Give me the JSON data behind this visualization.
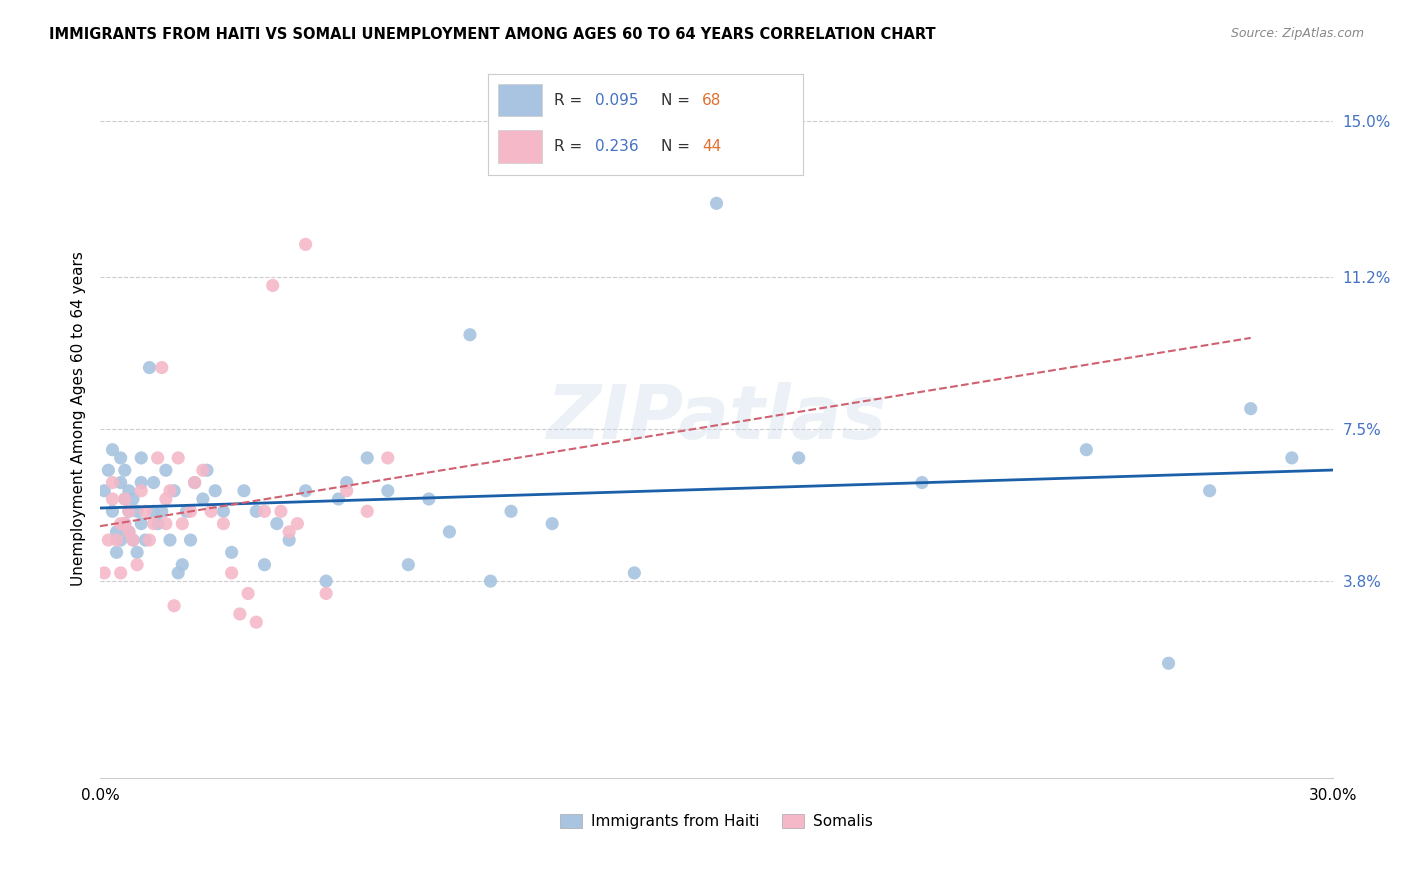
{
  "title": "IMMIGRANTS FROM HAITI VS SOMALI UNEMPLOYMENT AMONG AGES 60 TO 64 YEARS CORRELATION CHART",
  "source": "Source: ZipAtlas.com",
  "ylabel": "Unemployment Among Ages 60 to 64 years",
  "xlim": [
    0.0,
    0.3
  ],
  "ylim": [
    -0.01,
    0.165
  ],
  "haiti_R": 0.095,
  "haiti_N": 68,
  "somali_R": 0.236,
  "somali_N": 44,
  "haiti_color": "#a8c4e0",
  "somali_color": "#f4b8c8",
  "haiti_line_color": "#1a5fa8",
  "somali_line_color": "#d06070",
  "watermark": "ZIPatlas",
  "legend_label_haiti": "Immigrants from Haiti",
  "legend_label_somali": "Somalis",
  "haiti_x": [
    0.001,
    0.002,
    0.003,
    0.003,
    0.004,
    0.004,
    0.005,
    0.005,
    0.005,
    0.006,
    0.006,
    0.006,
    0.007,
    0.007,
    0.007,
    0.008,
    0.008,
    0.009,
    0.009,
    0.01,
    0.01,
    0.01,
    0.011,
    0.012,
    0.013,
    0.013,
    0.014,
    0.015,
    0.016,
    0.017,
    0.018,
    0.019,
    0.02,
    0.021,
    0.022,
    0.023,
    0.025,
    0.026,
    0.028,
    0.03,
    0.032,
    0.035,
    0.038,
    0.04,
    0.043,
    0.046,
    0.05,
    0.055,
    0.058,
    0.06,
    0.065,
    0.07,
    0.075,
    0.08,
    0.085,
    0.09,
    0.095,
    0.1,
    0.11,
    0.13,
    0.15,
    0.17,
    0.2,
    0.24,
    0.26,
    0.27,
    0.28,
    0.29
  ],
  "haiti_y": [
    0.06,
    0.065,
    0.055,
    0.07,
    0.05,
    0.045,
    0.048,
    0.062,
    0.068,
    0.052,
    0.058,
    0.065,
    0.05,
    0.055,
    0.06,
    0.048,
    0.058,
    0.045,
    0.055,
    0.062,
    0.052,
    0.068,
    0.048,
    0.09,
    0.055,
    0.062,
    0.052,
    0.055,
    0.065,
    0.048,
    0.06,
    0.04,
    0.042,
    0.055,
    0.048,
    0.062,
    0.058,
    0.065,
    0.06,
    0.055,
    0.045,
    0.06,
    0.055,
    0.042,
    0.052,
    0.048,
    0.06,
    0.038,
    0.058,
    0.062,
    0.068,
    0.06,
    0.042,
    0.058,
    0.05,
    0.098,
    0.038,
    0.055,
    0.052,
    0.04,
    0.13,
    0.068,
    0.062,
    0.07,
    0.018,
    0.06,
    0.08,
    0.068
  ],
  "somali_x": [
    0.001,
    0.002,
    0.003,
    0.003,
    0.004,
    0.005,
    0.005,
    0.006,
    0.006,
    0.007,
    0.007,
    0.008,
    0.009,
    0.01,
    0.011,
    0.012,
    0.013,
    0.014,
    0.015,
    0.016,
    0.016,
    0.017,
    0.018,
    0.019,
    0.02,
    0.022,
    0.023,
    0.025,
    0.027,
    0.03,
    0.032,
    0.034,
    0.036,
    0.038,
    0.04,
    0.042,
    0.044,
    0.046,
    0.048,
    0.05,
    0.055,
    0.06,
    0.065,
    0.07
  ],
  "somali_y": [
    0.04,
    0.048,
    0.058,
    0.062,
    0.048,
    0.052,
    0.04,
    0.058,
    0.052,
    0.05,
    0.055,
    0.048,
    0.042,
    0.06,
    0.055,
    0.048,
    0.052,
    0.068,
    0.09,
    0.058,
    0.052,
    0.06,
    0.032,
    0.068,
    0.052,
    0.055,
    0.062,
    0.065,
    0.055,
    0.052,
    0.04,
    0.03,
    0.035,
    0.028,
    0.055,
    0.11,
    0.055,
    0.05,
    0.052,
    0.12,
    0.035,
    0.06,
    0.055,
    0.068
  ]
}
